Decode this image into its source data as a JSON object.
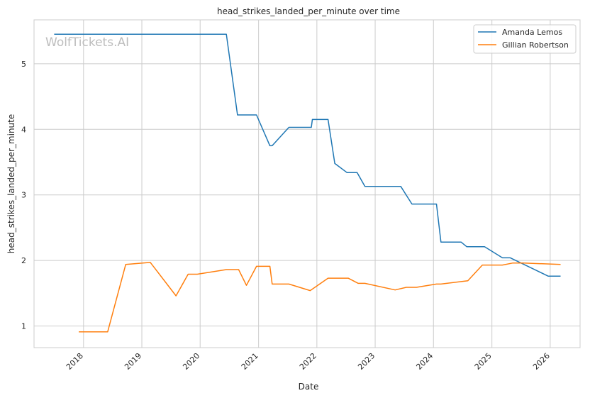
{
  "chart_data": {
    "type": "line",
    "title": "head_strikes_landed_per_minute over time",
    "xlabel": "Date",
    "ylabel": "head_strikes_landed_per_minute",
    "watermark": "WolfTickets.AI",
    "x_axis": "date",
    "xlim": [
      "2017-02-25",
      "2026-07-07"
    ],
    "ylim": [
      0.67,
      5.67
    ],
    "x_ticks": [
      "2018",
      "2019",
      "2020",
      "2021",
      "2022",
      "2023",
      "2024",
      "2025",
      "2026"
    ],
    "y_ticks": [
      1,
      2,
      3,
      4,
      5
    ],
    "grid": true,
    "legend_position": "top-right",
    "series": [
      {
        "name": "Amanda Lemos",
        "color": "#1f77b4",
        "points": [
          [
            "2017-07-01",
            5.45
          ],
          [
            "2020-06-13",
            5.45
          ],
          [
            "2020-08-22",
            4.22
          ],
          [
            "2020-12-19",
            4.22
          ],
          [
            "2021-03-13",
            3.75
          ],
          [
            "2021-03-27",
            3.75
          ],
          [
            "2021-07-10",
            4.03
          ],
          [
            "2021-11-27",
            4.03
          ],
          [
            "2021-12-04",
            4.15
          ],
          [
            "2022-03-12",
            4.15
          ],
          [
            "2022-04-23",
            3.48
          ],
          [
            "2022-07-09",
            3.34
          ],
          [
            "2022-09-10",
            3.34
          ],
          [
            "2022-10-29",
            3.13
          ],
          [
            "2023-06-10",
            3.13
          ],
          [
            "2023-08-19",
            2.86
          ],
          [
            "2024-01-20",
            2.86
          ],
          [
            "2024-02-17",
            2.28
          ],
          [
            "2024-06-22",
            2.28
          ],
          [
            "2024-07-27",
            2.21
          ],
          [
            "2024-11-16",
            2.21
          ],
          [
            "2025-03-08",
            2.04
          ],
          [
            "2025-04-26",
            2.04
          ],
          [
            "2025-12-20",
            1.76
          ],
          [
            "2026-03-07",
            1.76
          ]
        ]
      },
      {
        "name": "Gillian Robertson",
        "color": "#ff7f0e",
        "points": [
          [
            "2017-12-02",
            0.91
          ],
          [
            "2018-06-01",
            0.91
          ],
          [
            "2018-09-22",
            1.94
          ],
          [
            "2019-02-23",
            1.97
          ],
          [
            "2019-08-03",
            1.46
          ],
          [
            "2019-10-18",
            1.79
          ],
          [
            "2019-12-14",
            1.79
          ],
          [
            "2020-06-13",
            1.86
          ],
          [
            "2020-08-29",
            1.86
          ],
          [
            "2020-10-17",
            1.62
          ],
          [
            "2020-12-19",
            1.91
          ],
          [
            "2021-03-13",
            1.91
          ],
          [
            "2021-03-27",
            1.64
          ],
          [
            "2021-07-10",
            1.64
          ],
          [
            "2021-11-20",
            1.54
          ],
          [
            "2022-03-12",
            1.73
          ],
          [
            "2022-07-16",
            1.73
          ],
          [
            "2022-09-17",
            1.65
          ],
          [
            "2022-10-29",
            1.65
          ],
          [
            "2023-05-06",
            1.55
          ],
          [
            "2023-07-15",
            1.59
          ],
          [
            "2023-09-16",
            1.59
          ],
          [
            "2024-01-20",
            1.64
          ],
          [
            "2024-02-17",
            1.64
          ],
          [
            "2024-08-03",
            1.69
          ],
          [
            "2024-11-02",
            1.93
          ],
          [
            "2025-03-08",
            1.93
          ],
          [
            "2025-05-10",
            1.96
          ],
          [
            "2025-07-19",
            1.96
          ],
          [
            "2026-03-07",
            1.94
          ]
        ]
      }
    ]
  }
}
